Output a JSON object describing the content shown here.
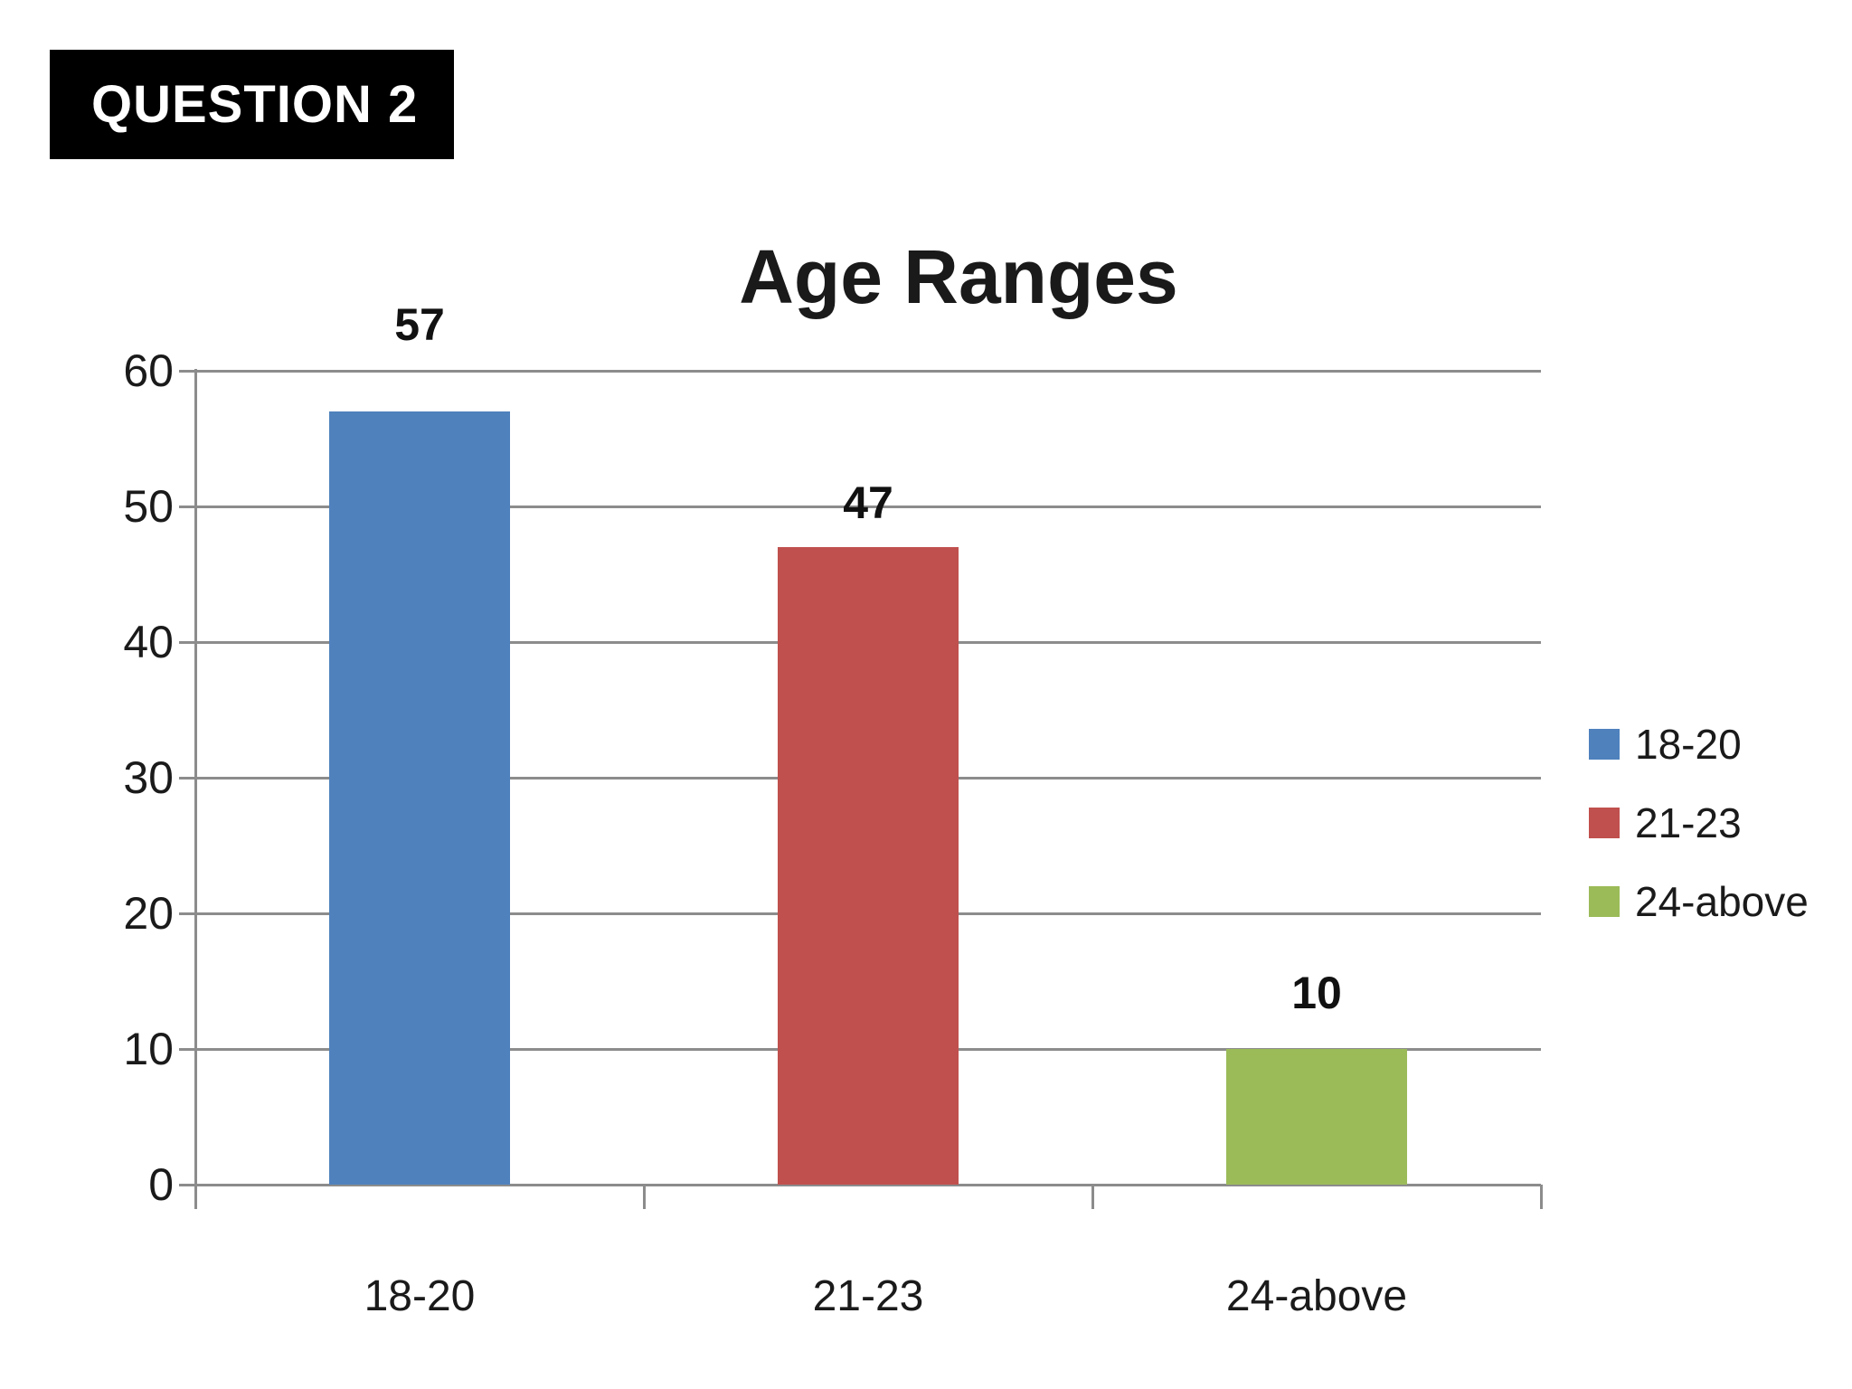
{
  "question_label": "QUESTION 2",
  "chart_data": {
    "type": "bar",
    "title": "Age Ranges",
    "categories": [
      "18-20",
      "21-23",
      "24-above"
    ],
    "values": [
      57,
      47,
      10
    ],
    "data_labels": [
      "57",
      "47",
      "10"
    ],
    "bar_colors": [
      "#4F81BD",
      "#C0504D",
      "#9BBB59"
    ],
    "ylim": [
      0,
      60
    ],
    "yticks": [
      0,
      10,
      20,
      30,
      40,
      50,
      60
    ],
    "grid": "horizontal",
    "legend_position": "right",
    "legend": [
      {
        "label": "18-20",
        "color": "#4F81BD"
      },
      {
        "label": "21-23",
        "color": "#C0504D"
      },
      {
        "label": "24-above",
        "color": "#9BBB59"
      }
    ]
  },
  "colors": {
    "background": "#ffffff",
    "question_box_bg": "#000000",
    "question_box_fg": "#ffffff",
    "gridline": "#8c8c8c",
    "axis": "#8c8c8c",
    "text": "#1a1a1a"
  }
}
